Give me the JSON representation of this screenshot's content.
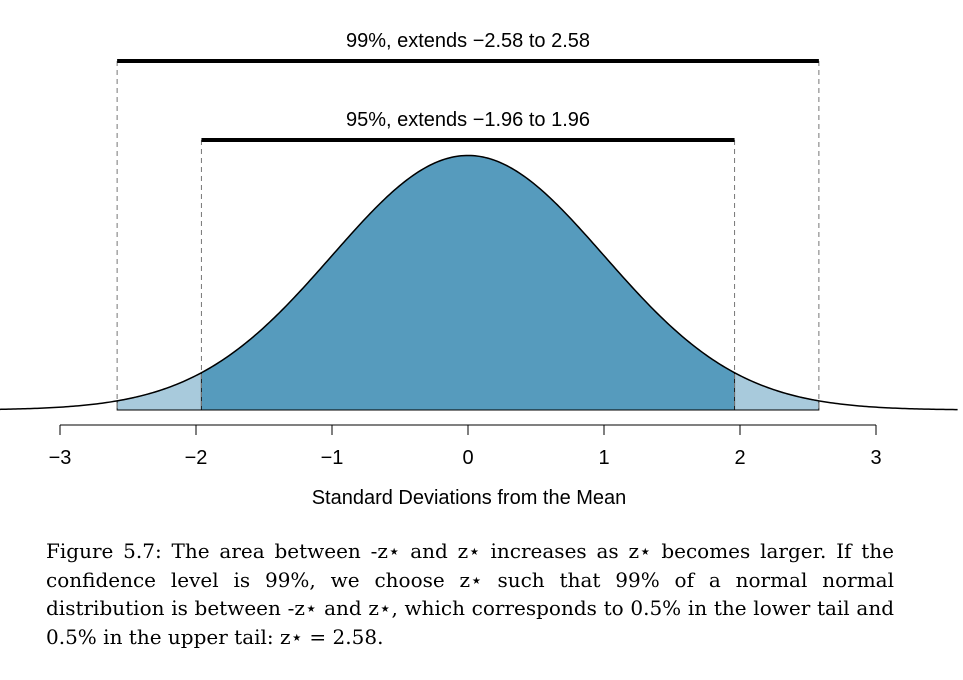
{
  "chart_data": {
    "type": "area",
    "distribution": "standard normal",
    "xlabel": "Standard Deviations from the Mean",
    "xlim": [
      -3.45,
      3.6
    ],
    "x_ticks": [
      -3,
      -2,
      -1,
      0,
      1,
      2,
      3
    ],
    "x_tick_labels": [
      "−3",
      "−2",
      "−1",
      "0",
      "1",
      "2",
      "3"
    ],
    "shaded_regions": [
      {
        "from": -2.58,
        "to": -1.96,
        "color": "#a8cadc"
      },
      {
        "from": -1.96,
        "to": 1.96,
        "color": "#569bbd"
      },
      {
        "from": 1.96,
        "to": 2.58,
        "color": "#a8cadc"
      }
    ],
    "intervals": [
      {
        "label": "99%, extends −2.58 to 2.58",
        "from": -2.58,
        "to": 2.58
      },
      {
        "label": "95%, extends −1.96 to 1.96",
        "from": -1.96,
        "to": 1.96
      }
    ]
  },
  "caption": {
    "figure": "Figure 5.7:",
    "text": "The area between -z⋆ and z⋆ increases as z⋆ becomes larger. If the confidence level is 99%, we choose z⋆ such that 99% of a normal normal distribution is between -z⋆ and z⋆, which corresponds to 0.5% in the lower tail and 0.5% in the upper tail: z⋆ = 2.58."
  }
}
